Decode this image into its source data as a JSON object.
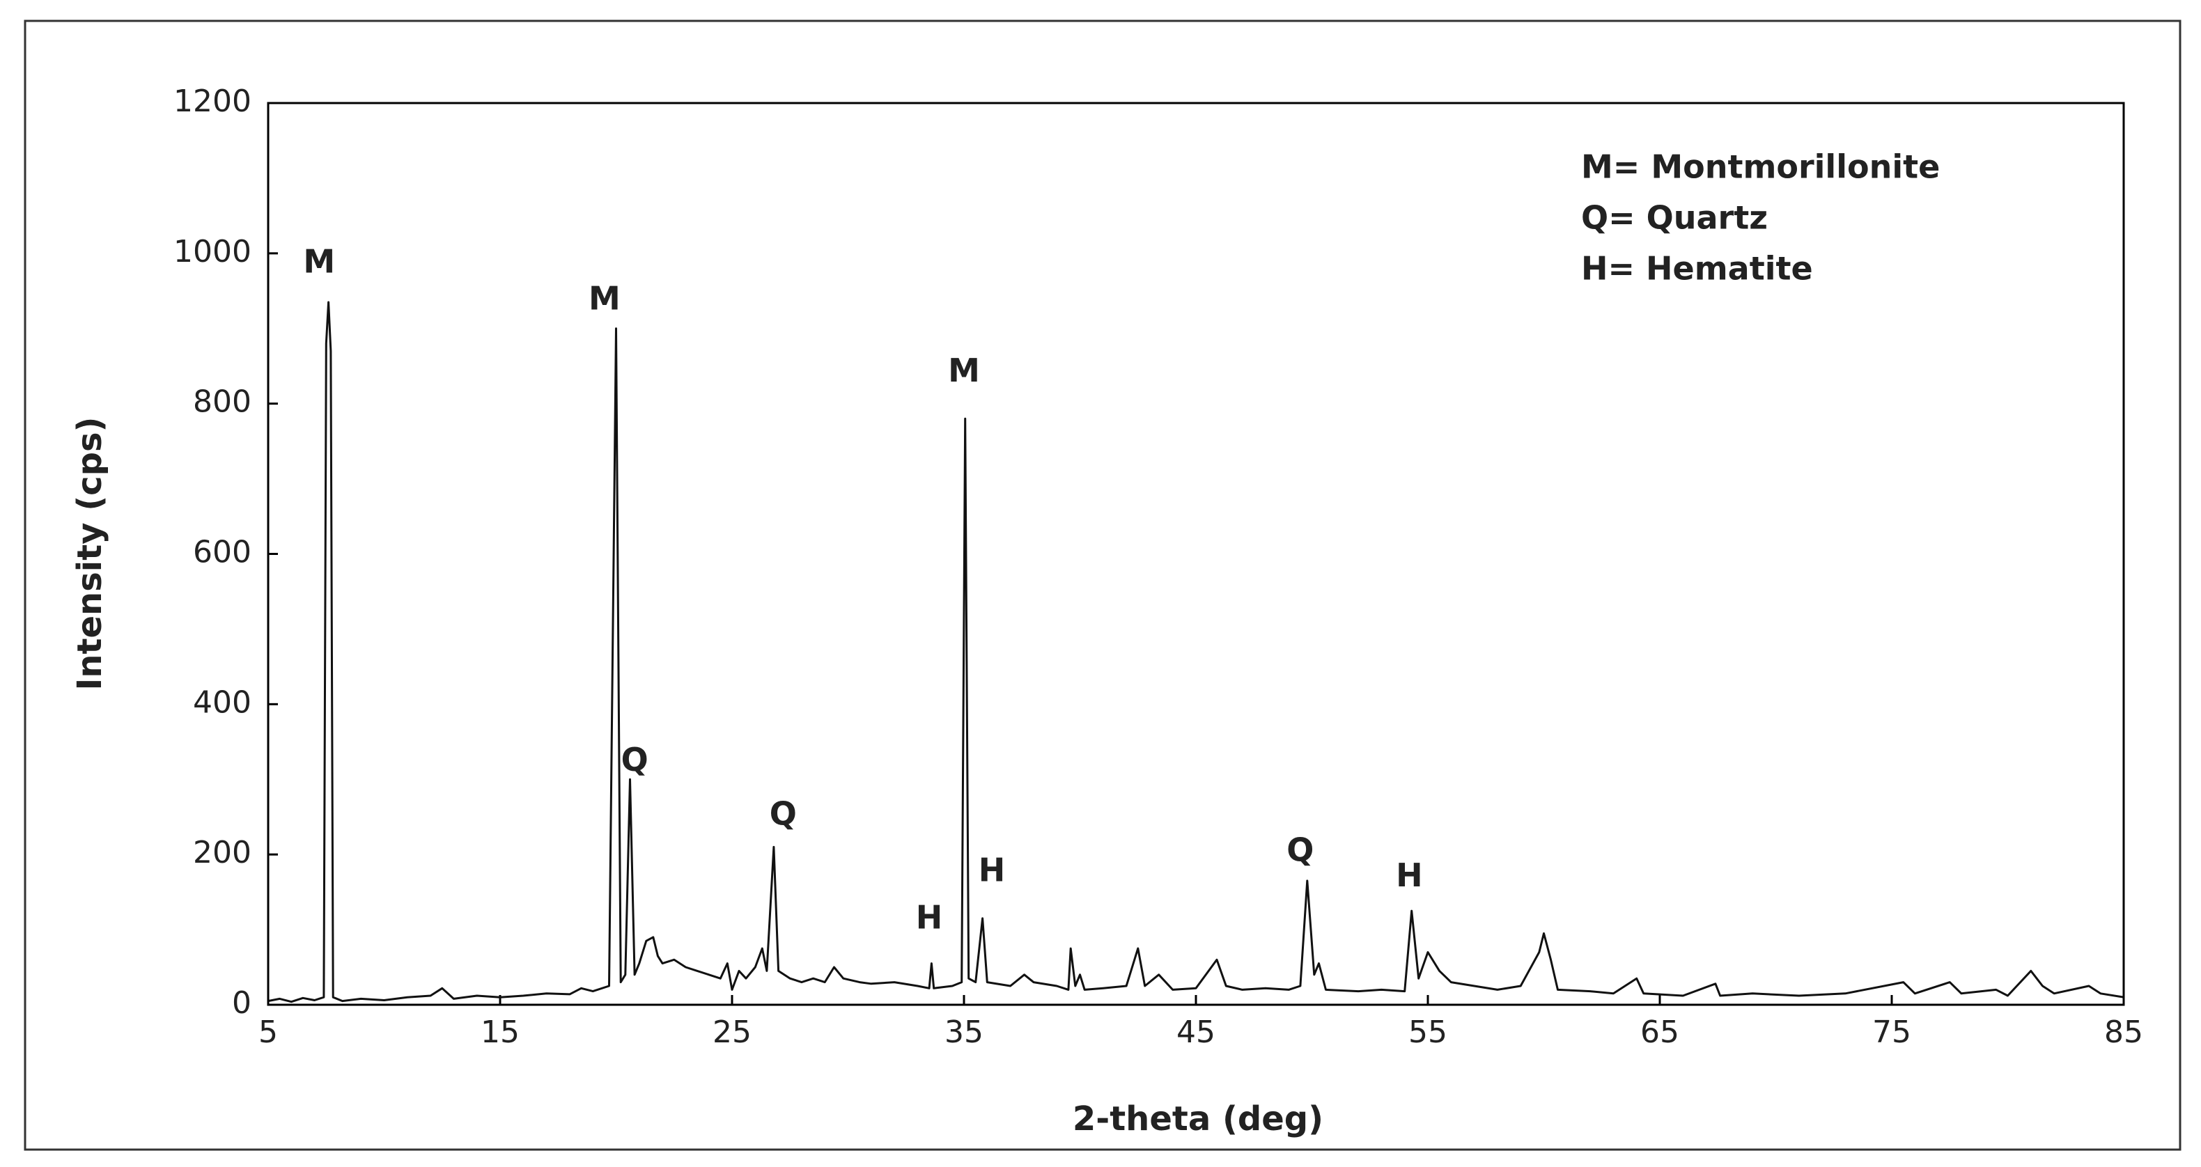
{
  "chart_data": {
    "type": "line",
    "xlabel": "2-theta (deg)",
    "ylabel": "Intensity (cps)",
    "color": "#111111",
    "xlim": [
      5,
      85
    ],
    "ylim": [
      0,
      1200
    ],
    "xticks": [
      5,
      15,
      25,
      35,
      45,
      55,
      65,
      75,
      85
    ],
    "yticks": [
      0,
      200,
      400,
      600,
      800,
      1000,
      1200
    ],
    "legend_corner": "upper right",
    "legend": [
      "M= Montmorillonite",
      "Q= Quartz",
      "H= Hematite"
    ],
    "annotations": [
      {
        "text": "M",
        "x": 7.2,
        "y": 986
      },
      {
        "text": "M",
        "x": 19.5,
        "y": 937
      },
      {
        "text": "Q",
        "x": 20.8,
        "y": 323
      },
      {
        "text": "Q",
        "x": 27.2,
        "y": 251
      },
      {
        "text": "H",
        "x": 33.5,
        "y": 113
      },
      {
        "text": "M",
        "x": 35.0,
        "y": 841
      },
      {
        "text": "H",
        "x": 36.2,
        "y": 176
      },
      {
        "text": "Q",
        "x": 49.5,
        "y": 203
      },
      {
        "text": "H",
        "x": 54.2,
        "y": 169
      }
    ],
    "x": [
      5,
      5.5,
      6,
      6.5,
      7,
      7.4,
      7.5,
      7.6,
      7.7,
      7.8,
      8.2,
      9,
      10,
      11,
      12,
      12.5,
      13,
      14,
      15,
      16,
      17,
      18,
      18.5,
      19,
      19.7,
      20.0,
      20.2,
      20.4,
      20.6,
      20.8,
      21,
      21.3,
      21.6,
      21.8,
      22,
      22.5,
      23,
      23.5,
      24,
      24.5,
      24.8,
      25,
      25.3,
      25.6,
      26,
      26.3,
      26.5,
      26.8,
      27,
      27.5,
      28,
      28.5,
      29,
      29.4,
      29.8,
      30.5,
      31,
      32,
      33,
      33.5,
      33.6,
      33.7,
      34.5,
      34.9,
      35.05,
      35.2,
      35.5,
      35.8,
      36,
      37,
      37.6,
      38,
      39,
      39.5,
      39.6,
      39.8,
      40,
      40.2,
      41,
      42,
      42.5,
      42.8,
      43.4,
      44,
      45,
      45.9,
      46.3,
      47,
      48,
      49,
      49.5,
      49.8,
      50.1,
      50.3,
      50.6,
      52,
      53,
      54,
      54.3,
      54.6,
      55,
      55.5,
      56,
      57,
      58,
      59,
      59.8,
      60,
      60.3,
      60.6,
      62,
      63,
      64,
      64.3,
      66,
      67.4,
      67.6,
      69,
      71,
      73,
      75.5,
      76,
      77.5,
      78,
      79.5,
      80,
      81,
      81.5,
      82,
      83.5,
      84,
      85
    ],
    "values": [
      5,
      8,
      4,
      9,
      6,
      10,
      880,
      935,
      870,
      10,
      5,
      8,
      6,
      10,
      12,
      22,
      8,
      12,
      10,
      12,
      15,
      14,
      22,
      18,
      25,
      900,
      30,
      40,
      300,
      40,
      55,
      85,
      90,
      65,
      55,
      60,
      50,
      45,
      40,
      35,
      55,
      20,
      45,
      35,
      50,
      75,
      45,
      210,
      45,
      35,
      30,
      35,
      30,
      50,
      35,
      30,
      28,
      30,
      25,
      22,
      55,
      22,
      25,
      30,
      780,
      35,
      30,
      115,
      30,
      25,
      40,
      30,
      25,
      20,
      75,
      25,
      40,
      20,
      22,
      25,
      75,
      25,
      40,
      20,
      22,
      60,
      25,
      20,
      22,
      20,
      25,
      165,
      40,
      55,
      20,
      18,
      20,
      18,
      125,
      35,
      70,
      45,
      30,
      25,
      20,
      25,
      70,
      95,
      60,
      20,
      18,
      15,
      35,
      15,
      12,
      28,
      12,
      15,
      12,
      15,
      30,
      15,
      30,
      15,
      20,
      12,
      45,
      25,
      15,
      25,
      15,
      10
    ]
  }
}
